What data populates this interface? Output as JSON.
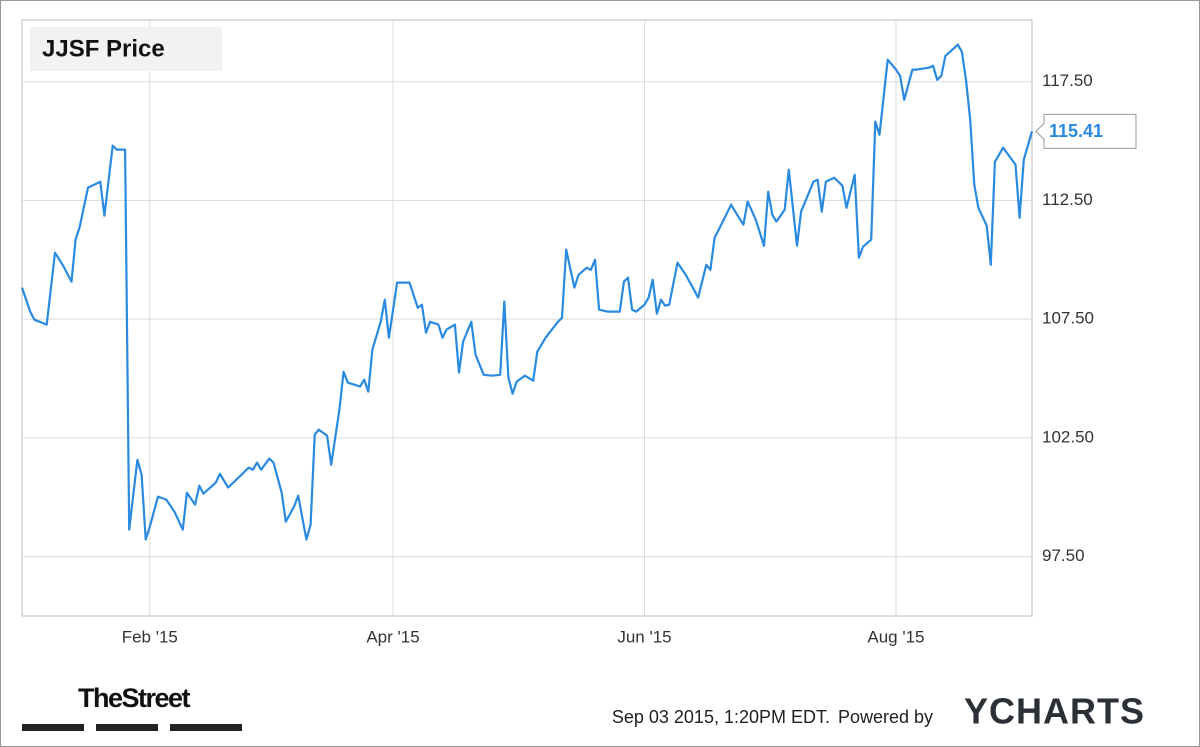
{
  "chart_data": {
    "type": "line",
    "title": "JJSF Price",
    "color": "#2a8ae0",
    "grid": true,
    "xlim": [
      1,
      246
    ],
    "ylim": [
      95,
      120.1
    ],
    "xticks": [
      {
        "value": 32,
        "label": "Feb '15"
      },
      {
        "value": 91,
        "label": "Apr '15"
      },
      {
        "value": 152,
        "label": "Jun '15"
      },
      {
        "value": 213,
        "label": "Aug '15"
      }
    ],
    "yticks": [
      {
        "value": 97.5,
        "label": "97.50"
      },
      {
        "value": 102.5,
        "label": "102.50"
      },
      {
        "value": 107.5,
        "label": "107.50"
      },
      {
        "value": 112.5,
        "label": "112.50"
      },
      {
        "value": 117.5,
        "label": "117.50"
      }
    ],
    "x": [
      1,
      3,
      4,
      7,
      9,
      11,
      13,
      14,
      15,
      17,
      20,
      21,
      23,
      24,
      26,
      27,
      29,
      30,
      31,
      32,
      34,
      36,
      38,
      40,
      41,
      43,
      44,
      45,
      48,
      49,
      51,
      54,
      56,
      57,
      58,
      59,
      61,
      62,
      64,
      65,
      67,
      68,
      70,
      71,
      72,
      73,
      75,
      76,
      78,
      79,
      80,
      83,
      84,
      85,
      86,
      88,
      89,
      90,
      92,
      95,
      97,
      98,
      99,
      100,
      102,
      103,
      104,
      106,
      107,
      108,
      110,
      111,
      113,
      115,
      117,
      118,
      119,
      120,
      121,
      123,
      125,
      126,
      128,
      131,
      132,
      133,
      135,
      136,
      138,
      139,
      140,
      141,
      143,
      146,
      147,
      148,
      149,
      150,
      152,
      153,
      154,
      155,
      156,
      157,
      158,
      160,
      162,
      164,
      165,
      167,
      168,
      169,
      171,
      173,
      174,
      176,
      177,
      179,
      181,
      182,
      183,
      184,
      186,
      187,
      189,
      190,
      193,
      194,
      195,
      196,
      198,
      200,
      201,
      203,
      204,
      205,
      207,
      208,
      209,
      211,
      213,
      214,
      215,
      217,
      218,
      221,
      222,
      223,
      224,
      225,
      228,
      229,
      230,
      231,
      232,
      233,
      235,
      236,
      237,
      239,
      242,
      243,
      244,
      246
    ],
    "values": [
      108.83,
      107.82,
      107.48,
      107.27,
      110.3,
      109.75,
      109.08,
      110.85,
      111.39,
      113.04,
      113.29,
      111.86,
      114.81,
      114.64,
      114.64,
      98.64,
      101.58,
      100.95,
      98.22,
      98.76,
      100.03,
      99.9,
      99.39,
      98.64,
      100.19,
      99.69,
      100.49,
      100.15,
      100.62,
      100.99,
      100.41,
      100.91,
      101.25,
      101.16,
      101.46,
      101.16,
      101.63,
      101.46,
      100.19,
      98.97,
      99.61,
      100.07,
      98.22,
      98.85,
      102.64,
      102.85,
      102.59,
      101.37,
      103.69,
      105.29,
      104.83,
      104.66,
      104.95,
      104.45,
      106.22,
      107.39,
      108.32,
      106.72,
      109.04,
      109.04,
      107.98,
      108.11,
      106.93,
      107.39,
      107.27,
      106.72,
      107.06,
      107.27,
      105.25,
      106.55,
      107.39,
      106.01,
      105.16,
      105.12,
      105.16,
      108.24,
      105.04,
      104.36,
      104.87,
      105.12,
      104.91,
      106.13,
      106.72,
      107.39,
      107.56,
      110.43,
      108.83,
      109.37,
      109.67,
      109.58,
      110.01,
      107.9,
      107.82,
      107.82,
      109.08,
      109.25,
      107.9,
      107.82,
      108.11,
      108.41,
      109.16,
      107.73,
      108.32,
      108.07,
      108.11,
      109.88,
      109.37,
      108.74,
      108.41,
      109.79,
      109.58,
      110.93,
      111.61,
      112.32,
      112.03,
      111.48,
      112.45,
      111.69,
      110.59,
      112.87,
      111.9,
      111.61,
      112.11,
      113.79,
      110.59,
      112.03,
      113.29,
      113.37,
      112.03,
      113.29,
      113.46,
      113.12,
      112.19,
      113.58,
      110.09,
      110.55,
      110.85,
      115.82,
      115.27,
      118.43,
      118.01,
      117.75,
      116.74,
      118.01,
      118.01,
      118.09,
      118.17,
      117.58,
      117.75,
      118.59,
      119.06,
      118.76,
      117.58,
      115.9,
      113.16,
      112.19,
      111.44,
      109.79,
      114.13,
      114.72,
      114.01,
      111.77,
      114.22,
      115.41
    ]
  },
  "branding": {
    "publisher": "TheStreet",
    "timestamp": "Sep 03 2015, 1:20PM EDT.",
    "powered_by": "Powered by",
    "logo": "YCHARTS"
  }
}
